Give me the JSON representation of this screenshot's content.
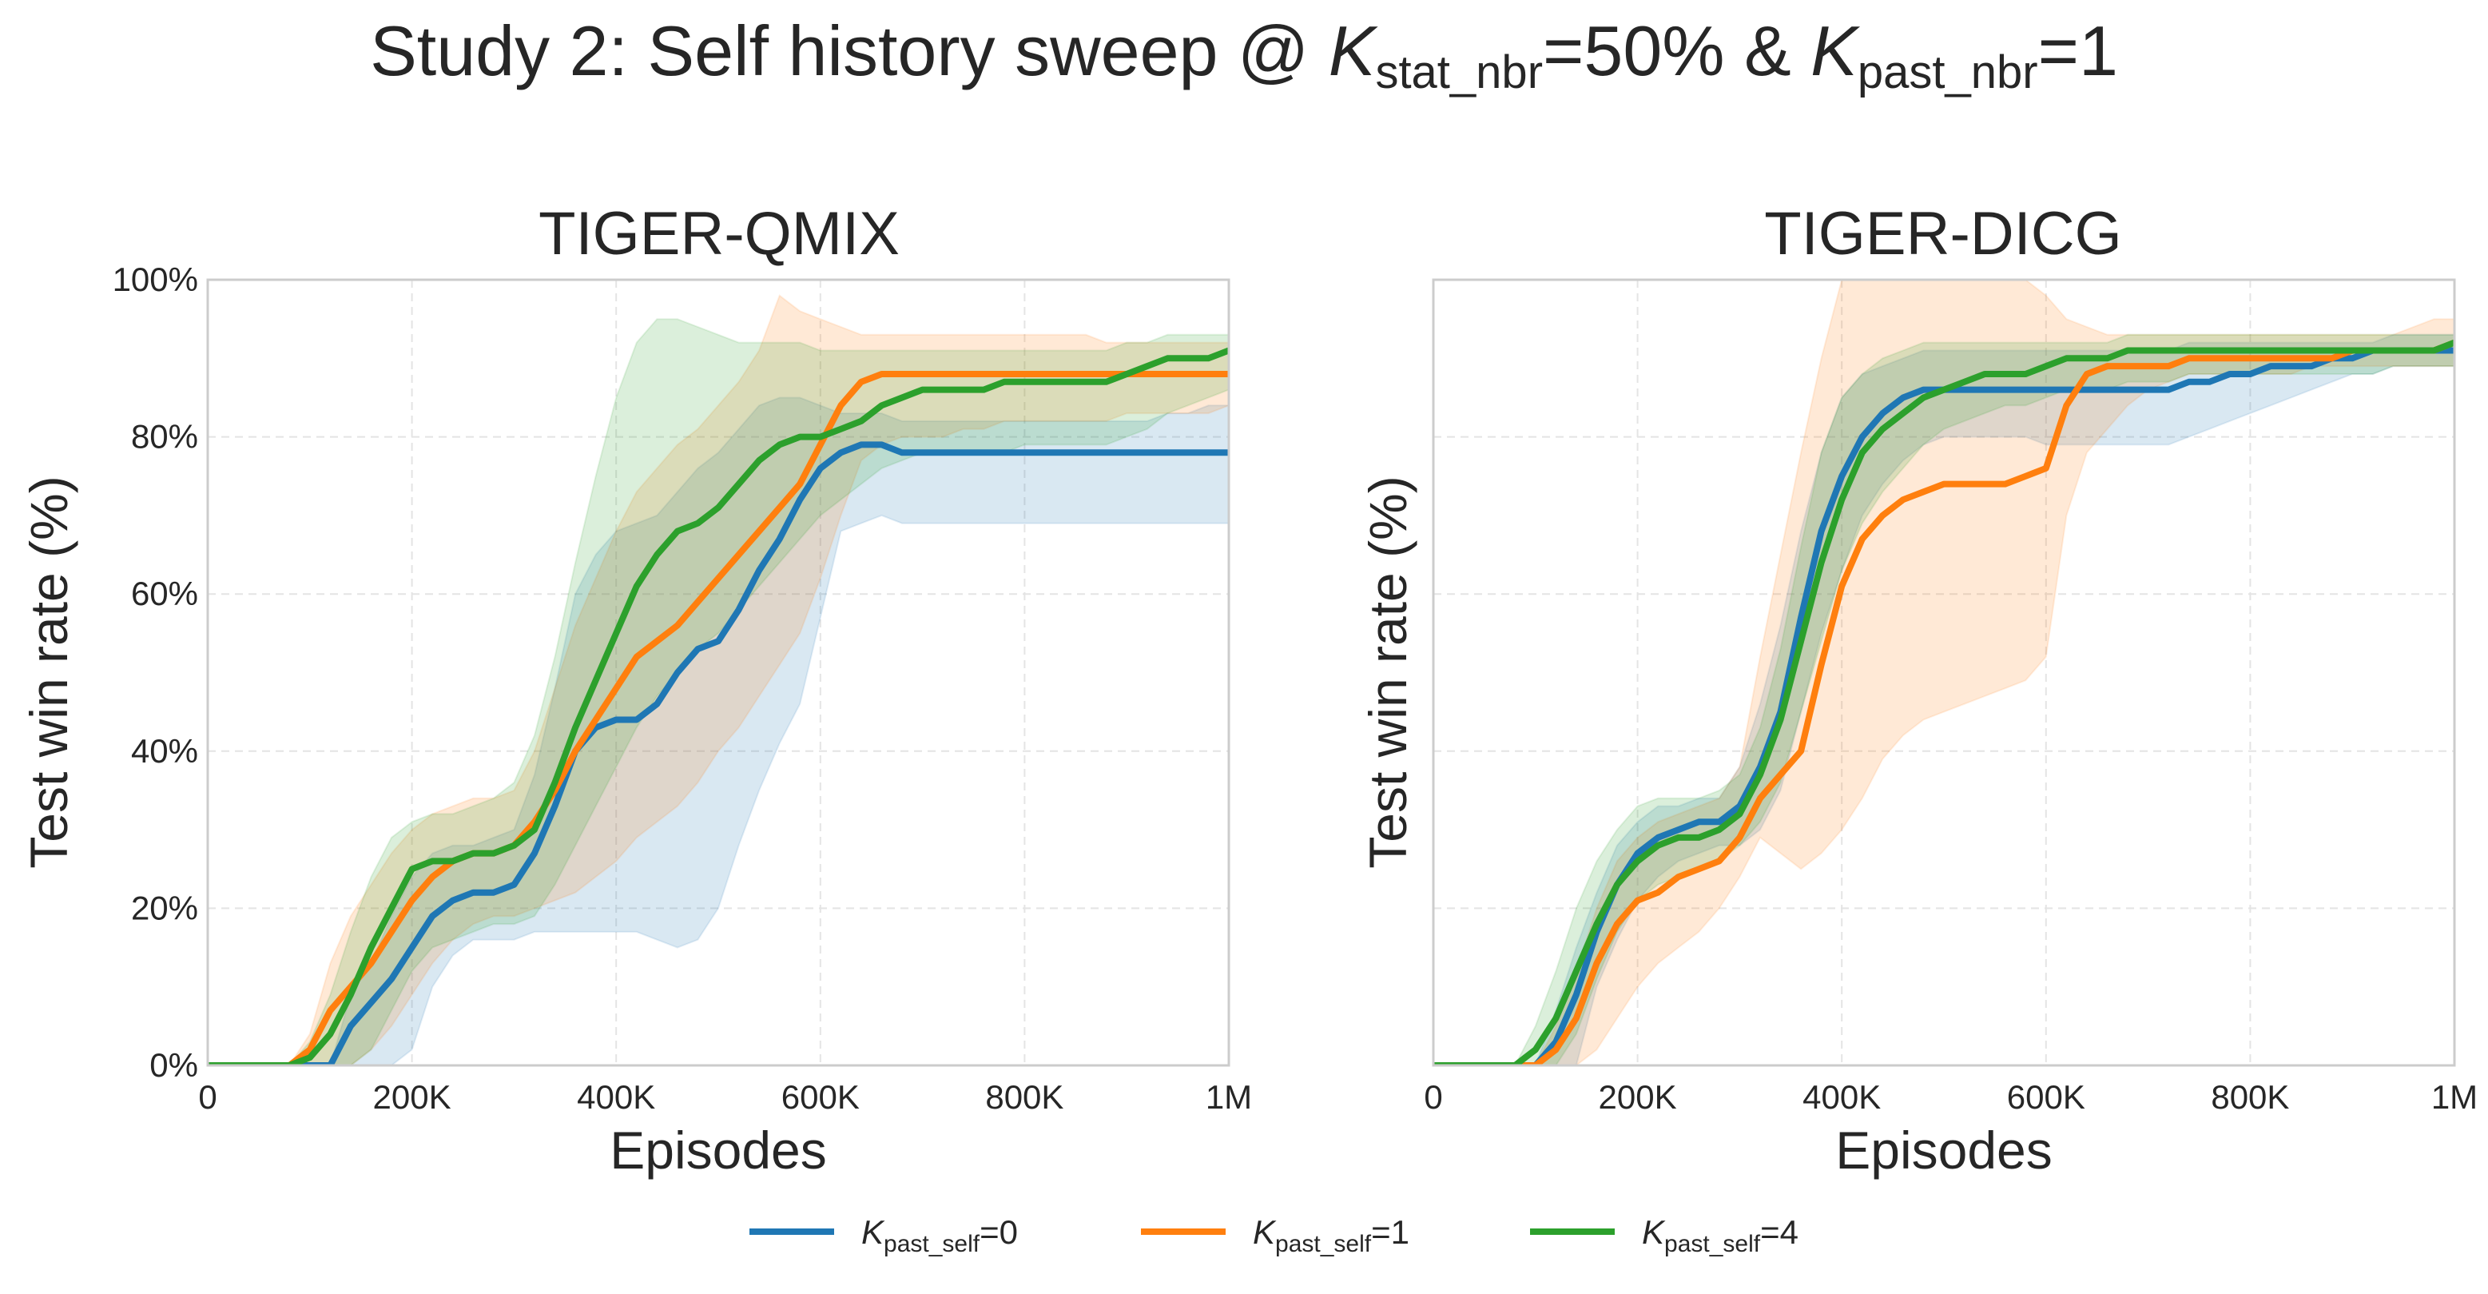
{
  "figure": {
    "suptitle": {
      "prefix": "Study 2: Self history sweep @ ",
      "k1_sub": "stat_nbr",
      "mid": "=50% & ",
      "k2_sub": "past_nbr",
      "suffix": "=1"
    },
    "k_symbol": "K"
  },
  "legend": {
    "entries": [
      {
        "sym": "K",
        "sub": "past_self",
        "suffix": "=0",
        "color": "#1f77b4"
      },
      {
        "sym": "K",
        "sub": "past_self",
        "suffix": "=1",
        "color": "#ff7f0e"
      },
      {
        "sym": "K",
        "sub": "past_self",
        "suffix": "=4",
        "color": "#2ca02c"
      }
    ]
  },
  "chart_data": [
    {
      "type": "line",
      "title": "TIGER-QMIX",
      "xlabel": "Episodes",
      "ylabel": "Test win rate (%)",
      "xlim": [
        0,
        1000000
      ],
      "ylim": [
        0,
        100
      ],
      "xticks": [
        0,
        200000,
        400000,
        600000,
        800000,
        1000000
      ],
      "xtick_labels": [
        "0",
        "200K",
        "400K",
        "600K",
        "800K",
        "1M"
      ],
      "yticks": [
        0,
        20,
        40,
        60,
        80,
        100
      ],
      "ytick_labels": [
        "0%",
        "20%",
        "40%",
        "60%",
        "80%",
        "100%"
      ],
      "grid": true,
      "shaded_band": true,
      "x": [
        0,
        50000,
        80000,
        100000,
        120000,
        140000,
        160000,
        180000,
        200000,
        220000,
        240000,
        260000,
        280000,
        300000,
        320000,
        340000,
        360000,
        380000,
        400000,
        420000,
        440000,
        460000,
        480000,
        500000,
        520000,
        540000,
        560000,
        580000,
        600000,
        620000,
        640000,
        660000,
        680000,
        700000,
        720000,
        740000,
        760000,
        780000,
        800000,
        820000,
        840000,
        860000,
        880000,
        900000,
        920000,
        940000,
        960000,
        980000,
        1000000
      ],
      "series": [
        {
          "name": "K_past_self=0",
          "color": "#1f77b4",
          "mean": [
            0,
            0,
            0,
            0,
            0,
            5,
            8,
            11,
            15,
            19,
            21,
            22,
            22,
            23,
            27,
            33,
            40,
            43,
            44,
            44,
            46,
            50,
            53,
            54,
            58,
            63,
            67,
            72,
            76,
            78,
            79,
            79,
            78,
            78,
            78,
            78,
            78,
            78,
            78,
            78,
            78,
            78,
            78,
            78,
            78,
            78,
            78,
            78,
            78
          ],
          "lower": [
            0,
            0,
            0,
            0,
            0,
            0,
            0,
            0,
            2,
            10,
            14,
            16,
            16,
            16,
            17,
            17,
            17,
            17,
            17,
            17,
            16,
            15,
            16,
            20,
            28,
            35,
            41,
            46,
            57,
            68,
            69,
            70,
            69,
            69,
            69,
            69,
            69,
            69,
            69,
            69,
            69,
            69,
            69,
            69,
            69,
            69,
            69,
            69,
            69
          ],
          "upper": [
            0,
            0,
            0,
            0,
            0,
            9,
            13,
            19,
            24,
            27,
            28,
            28,
            29,
            30,
            37,
            48,
            60,
            65,
            68,
            69,
            70,
            73,
            76,
            78,
            81,
            84,
            85,
            85,
            84,
            83,
            83,
            83,
            82,
            82,
            82,
            82,
            82,
            82,
            82,
            82,
            82,
            82,
            82,
            82,
            82,
            83,
            83,
            84,
            84
          ]
        },
        {
          "name": "K_past_self=1",
          "color": "#ff7f0e",
          "mean": [
            0,
            0,
            0,
            2,
            7,
            10,
            13,
            17,
            21,
            24,
            26,
            27,
            27,
            28,
            31,
            35,
            40,
            44,
            48,
            52,
            54,
            56,
            59,
            62,
            65,
            68,
            71,
            74,
            79,
            84,
            87,
            88,
            88,
            88,
            88,
            88,
            88,
            88,
            88,
            88,
            88,
            88,
            88,
            88,
            88,
            88,
            88,
            88,
            88
          ],
          "lower": [
            0,
            0,
            0,
            0,
            0,
            0,
            2,
            5,
            9,
            13,
            16,
            18,
            19,
            19,
            20,
            21,
            22,
            24,
            26,
            29,
            31,
            33,
            36,
            40,
            43,
            47,
            51,
            55,
            62,
            70,
            77,
            79,
            80,
            80,
            80,
            81,
            81,
            82,
            82,
            82,
            82,
            82,
            82,
            83,
            83,
            83,
            83,
            83,
            84
          ],
          "upper": [
            0,
            0,
            0,
            4,
            13,
            19,
            23,
            27,
            30,
            32,
            33,
            34,
            34,
            35,
            40,
            48,
            56,
            62,
            68,
            73,
            76,
            79,
            81,
            84,
            87,
            91,
            98,
            96,
            95,
            94,
            93,
            93,
            93,
            93,
            93,
            93,
            93,
            93,
            93,
            93,
            93,
            93,
            92,
            92,
            92,
            92,
            92,
            92,
            92
          ]
        },
        {
          "name": "K_past_self=4",
          "color": "#2ca02c",
          "mean": [
            0,
            0,
            0,
            1,
            4,
            9,
            15,
            20,
            25,
            26,
            26,
            27,
            27,
            28,
            30,
            36,
            43,
            49,
            55,
            61,
            65,
            68,
            69,
            71,
            74,
            77,
            79,
            80,
            80,
            81,
            82,
            84,
            85,
            86,
            86,
            86,
            86,
            87,
            87,
            87,
            87,
            87,
            87,
            88,
            89,
            90,
            90,
            90,
            91
          ],
          "lower": [
            0,
            0,
            0,
            0,
            0,
            0,
            2,
            7,
            12,
            15,
            16,
            17,
            18,
            18,
            19,
            23,
            28,
            33,
            38,
            43,
            47,
            50,
            53,
            55,
            58,
            61,
            64,
            67,
            70,
            72,
            74,
            76,
            77,
            78,
            78,
            78,
            78,
            78,
            79,
            79,
            79,
            79,
            79,
            80,
            81,
            83,
            84,
            85,
            86
          ],
          "upper": [
            0,
            0,
            0,
            3,
            9,
            17,
            24,
            29,
            31,
            32,
            32,
            33,
            34,
            36,
            42,
            52,
            64,
            75,
            85,
            92,
            95,
            95,
            94,
            93,
            92,
            92,
            92,
            92,
            91,
            91,
            91,
            91,
            91,
            91,
            91,
            91,
            91,
            91,
            91,
            91,
            91,
            91,
            91,
            92,
            92,
            93,
            93,
            93,
            93
          ]
        }
      ]
    },
    {
      "type": "line",
      "title": "TIGER-DICG",
      "xlabel": "Episodes",
      "ylabel": "Test win rate (%)",
      "xlim": [
        0,
        1000000
      ],
      "ylim": [
        0,
        100
      ],
      "xticks": [
        0,
        200000,
        400000,
        600000,
        800000,
        1000000
      ],
      "xtick_labels": [
        "0",
        "200K",
        "400K",
        "600K",
        "800K",
        "1M"
      ],
      "yticks": [
        0,
        20,
        40,
        60,
        80,
        100
      ],
      "ytick_labels": [],
      "grid": true,
      "shaded_band": true,
      "x": [
        0,
        50000,
        80000,
        100000,
        120000,
        140000,
        160000,
        180000,
        200000,
        220000,
        240000,
        260000,
        280000,
        300000,
        320000,
        340000,
        360000,
        380000,
        400000,
        420000,
        440000,
        460000,
        480000,
        500000,
        520000,
        540000,
        560000,
        580000,
        600000,
        620000,
        640000,
        660000,
        680000,
        700000,
        720000,
        740000,
        760000,
        780000,
        800000,
        820000,
        840000,
        860000,
        880000,
        900000,
        920000,
        940000,
        960000,
        980000,
        1000000
      ],
      "series": [
        {
          "name": "K_past_self=0",
          "color": "#1f77b4",
          "mean": [
            0,
            0,
            0,
            0,
            3,
            9,
            17,
            23,
            27,
            29,
            30,
            31,
            31,
            33,
            38,
            45,
            57,
            68,
            75,
            80,
            83,
            85,
            86,
            86,
            86,
            86,
            86,
            86,
            86,
            86,
            86,
            86,
            86,
            86,
            86,
            87,
            87,
            88,
            88,
            89,
            89,
            89,
            90,
            90,
            91,
            91,
            91,
            91,
            91
          ],
          "lower": [
            0,
            0,
            0,
            0,
            0,
            0,
            10,
            16,
            21,
            24,
            26,
            27,
            28,
            28,
            30,
            35,
            45,
            55,
            63,
            70,
            74,
            77,
            79,
            80,
            80,
            80,
            80,
            80,
            79,
            79,
            79,
            79,
            79,
            79,
            79,
            80,
            81,
            82,
            83,
            84,
            85,
            86,
            87,
            88,
            88,
            89,
            89,
            89,
            89
          ],
          "upper": [
            0,
            0,
            0,
            0,
            7,
            15,
            22,
            28,
            31,
            33,
            33,
            34,
            34,
            38,
            46,
            56,
            68,
            78,
            85,
            88,
            89,
            90,
            91,
            91,
            91,
            91,
            91,
            91,
            91,
            91,
            91,
            91,
            91,
            91,
            91,
            92,
            92,
            92,
            92,
            92,
            92,
            92,
            92,
            92,
            92,
            93,
            93,
            93,
            93
          ],
          "tail_upper": 93
        },
        {
          "name": "K_past_self=1",
          "color": "#ff7f0e",
          "mean": [
            0,
            0,
            0,
            0,
            2,
            6,
            13,
            18,
            21,
            22,
            24,
            25,
            26,
            29,
            34,
            37,
            40,
            51,
            61,
            67,
            70,
            72,
            73,
            74,
            74,
            74,
            74,
            75,
            76,
            84,
            88,
            89,
            89,
            89,
            89,
            90,
            90,
            90,
            90,
            90,
            90,
            90,
            90,
            91,
            91,
            91,
            91,
            91,
            92
          ],
          "lower": [
            0,
            0,
            0,
            0,
            0,
            0,
            2,
            6,
            10,
            13,
            15,
            17,
            20,
            24,
            29,
            27,
            25,
            27,
            30,
            34,
            39,
            42,
            44,
            45,
            46,
            47,
            48,
            49,
            52,
            70,
            78,
            81,
            84,
            86,
            87,
            88,
            88,
            88,
            88,
            88,
            88,
            89,
            89,
            89,
            89,
            89,
            89,
            89,
            89
          ],
          "upper": [
            0,
            0,
            0,
            0,
            5,
            12,
            20,
            26,
            29,
            31,
            32,
            33,
            34,
            38,
            52,
            65,
            78,
            90,
            100,
            100,
            100,
            100,
            100,
            100,
            100,
            100,
            100,
            100,
            98,
            95,
            94,
            93,
            93,
            93,
            93,
            93,
            93,
            93,
            93,
            93,
            93,
            93,
            93,
            93,
            93,
            93,
            94,
            95,
            95
          ]
        },
        {
          "name": "K_past_self=4",
          "color": "#2ca02c",
          "mean": [
            0,
            0,
            0,
            2,
            6,
            12,
            18,
            23,
            26,
            28,
            29,
            29,
            30,
            32,
            37,
            44,
            54,
            64,
            72,
            78,
            81,
            83,
            85,
            86,
            87,
            88,
            88,
            88,
            89,
            90,
            90,
            90,
            91,
            91,
            91,
            91,
            91,
            91,
            91,
            91,
            91,
            91,
            91,
            91,
            91,
            91,
            91,
            91,
            92
          ],
          "lower": [
            0,
            0,
            0,
            0,
            0,
            4,
            11,
            17,
            21,
            23,
            24,
            25,
            26,
            28,
            31,
            36,
            45,
            54,
            63,
            69,
            73,
            76,
            79,
            81,
            82,
            83,
            84,
            84,
            85,
            86,
            86,
            86,
            87,
            87,
            87,
            88,
            88,
            88,
            88,
            88,
            88,
            88,
            88,
            88,
            88,
            89,
            89,
            89,
            89
          ],
          "upper": [
            0,
            0,
            0,
            5,
            12,
            20,
            26,
            30,
            33,
            34,
            34,
            34,
            35,
            37,
            43,
            53,
            66,
            78,
            85,
            88,
            90,
            91,
            92,
            92,
            92,
            92,
            92,
            92,
            92,
            92,
            92,
            92,
            93,
            93,
            93,
            93,
            93,
            93,
            93,
            93,
            93,
            93,
            93,
            93,
            93,
            93,
            93,
            93,
            93
          ]
        }
      ]
    }
  ]
}
